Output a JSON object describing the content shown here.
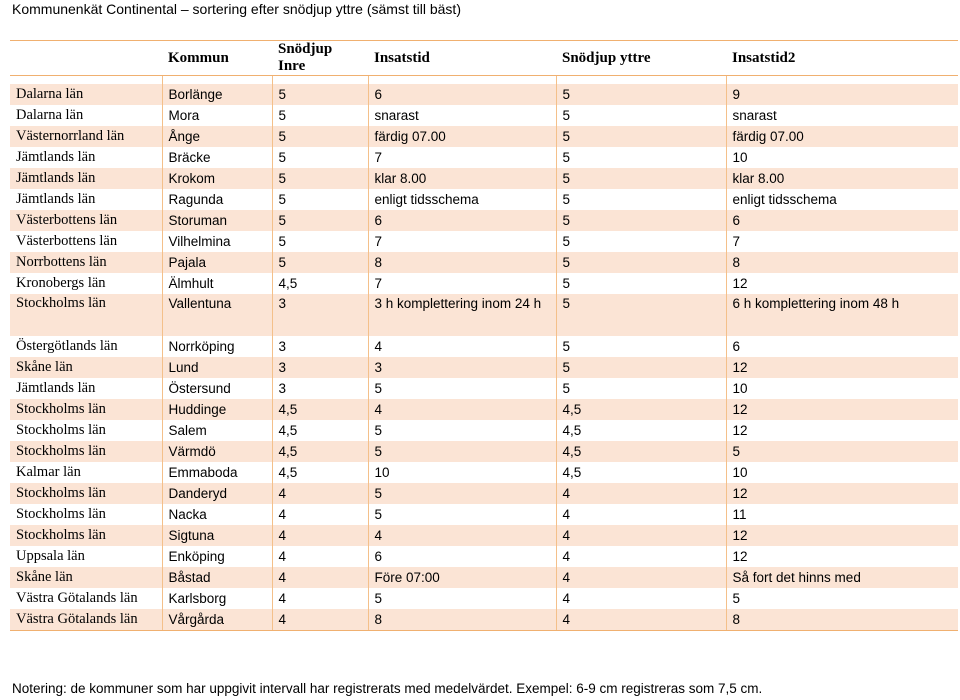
{
  "title": "Kommunenkät Continental – sortering efter snödjup yttre (sämst till bäst)",
  "headers": [
    "",
    "Kommun",
    "Snödjup Inre",
    "Insatstid",
    "Snödjup yttre",
    "Insatstid2"
  ],
  "rows": [
    [
      "Dalarna län",
      "Borlänge",
      "5",
      "6",
      "5",
      "9"
    ],
    [
      "Dalarna län",
      "Mora",
      "5",
      "snarast",
      "5",
      "snarast"
    ],
    [
      "Västernorrland län",
      "Ånge",
      "5",
      "färdig 07.00",
      "5",
      "färdig 07.00"
    ],
    [
      "Jämtlands län",
      "Bräcke",
      "5",
      "7",
      "5",
      "10"
    ],
    [
      "Jämtlands län",
      "Krokom",
      "5",
      "klar 8.00",
      "5",
      "klar 8.00"
    ],
    [
      "Jämtlands län",
      "Ragunda",
      "5",
      "enligt tidsschema",
      "5",
      "enligt tidsschema"
    ],
    [
      "Västerbottens län",
      "Storuman",
      "5",
      "6",
      "5",
      "6"
    ],
    [
      "Västerbottens län",
      "Vilhelmina",
      "5",
      "7",
      "5",
      "7"
    ],
    [
      "Norrbottens län",
      "Pajala",
      "5",
      "8",
      "5",
      "8"
    ],
    [
      "Kronobergs län",
      "Älmhult",
      "4,5",
      "7",
      "5",
      "12"
    ],
    [
      "Stockholms län",
      "Vallentuna",
      "3",
      "3 h komplettering inom 24 h",
      "5",
      "6 h komplettering inom 48 h"
    ],
    [
      "Östergötlands län",
      "Norrköping",
      "3",
      "4",
      "5",
      "6"
    ],
    [
      "Skåne län",
      "Lund",
      "3",
      "3",
      "5",
      "12"
    ],
    [
      "Jämtlands län",
      "Östersund",
      "3",
      "5",
      "5",
      "10"
    ],
    [
      "Stockholms län",
      "Huddinge",
      "4,5",
      "4",
      "4,5",
      "12"
    ],
    [
      "Stockholms län",
      "Salem",
      "4,5",
      "5",
      "4,5",
      "12"
    ],
    [
      "Stockholms län",
      "Värmdö",
      "4,5",
      "5",
      "4,5",
      "5"
    ],
    [
      "Kalmar län",
      "Emmaboda",
      "4,5",
      "10",
      "4,5",
      "10"
    ],
    [
      "Stockholms län",
      "Danderyd",
      "4",
      "5",
      "4",
      "12"
    ],
    [
      "Stockholms län",
      "Nacka",
      "4",
      "5",
      "4",
      "11"
    ],
    [
      "Stockholms län",
      "Sigtuna",
      "4",
      "4",
      "4",
      "12"
    ],
    [
      "Uppsala län",
      "Enköping",
      "4",
      "6",
      "4",
      "12"
    ],
    [
      "Skåne län",
      "Båstad",
      "4",
      "Före 07:00",
      "4",
      "Så fort det hinns med"
    ],
    [
      "Västra Götalands län",
      "Karlsborg",
      "4",
      "5",
      "4",
      "5"
    ],
    [
      "Västra Götalands län",
      "Vårgårda",
      "4",
      "8",
      "4",
      "8"
    ]
  ],
  "note": "Notering: de kommuner som har uppgivit intervall har registrerats med medelvärdet. Exempel: 6-9 cm registreras som 7,5 cm.",
  "colors": {
    "stripe": "#fbe4d5",
    "border": "#f0b070"
  }
}
